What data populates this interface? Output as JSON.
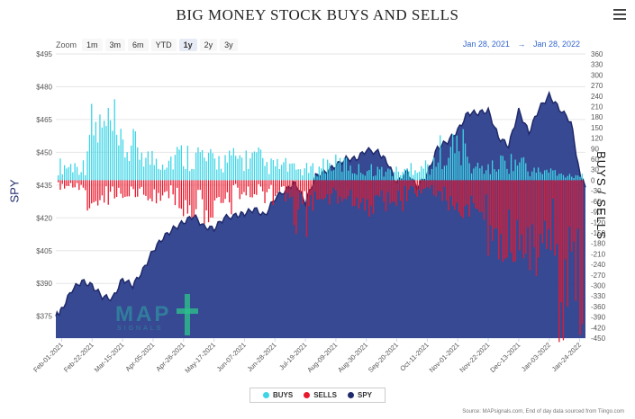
{
  "header": {
    "title": "BIG MONEY STOCK BUYS AND SELLS"
  },
  "toolbar": {
    "zoom_label": "Zoom",
    "zoom_options": [
      "1m",
      "3m",
      "6m",
      "YTD",
      "1y",
      "2y",
      "3y"
    ],
    "zoom_active": "1y",
    "range_from": "Jan 28, 2021",
    "range_arrow": "→",
    "range_to": "Jan 28, 2022"
  },
  "watermark": {
    "text": "MAP",
    "sub": "SIGNALS"
  },
  "source": "Source: MAPsignals.com, End of day data sourced from Tiingo.com",
  "colors": {
    "buys": "#3dd5e6",
    "sells": "#e8182c",
    "spy": "#1f2a6b",
    "spy_fill": "#27398a"
  },
  "chart_data": {
    "type": "bar",
    "title": "BIG MONEY STOCK BUYS AND SELLS",
    "ylabel_left": "SPY",
    "ylabel_right": "BUYS / SELLS",
    "ylim_left": [
      365,
      495
    ],
    "ylim_right": [
      -450,
      360
    ],
    "yticks_left": [
      375,
      390,
      405,
      420,
      435,
      450,
      465,
      480,
      495
    ],
    "yticks_right": [
      -450,
      -420,
      -390,
      -360,
      -330,
      -300,
      -270,
      -240,
      -210,
      -180,
      -150,
      -120,
      -90,
      -60,
      -30,
      0,
      30,
      60,
      90,
      120,
      150,
      180,
      210,
      240,
      270,
      300,
      330,
      360
    ],
    "x_ticks": [
      "Feb-01-2021",
      "Feb-22-2021",
      "Mar-15-2021",
      "Apr-05-2021",
      "Apr-26-2021",
      "May-17-2021",
      "Jun-07-2021",
      "Jun-28-2021",
      "Jul-19-2021",
      "Aug-09-2021",
      "Aug-30-2021",
      "Sep-20-2021",
      "Oct-11-2021",
      "Nov-01-2021",
      "Nov-22-2021",
      "Dec-13-2021",
      "Jan-03-2022",
      "Jan-24-2022"
    ],
    "legend": [
      "BUYS",
      "SELLS",
      "SPY"
    ],
    "legend_position": "bottom",
    "spy_series": [
      [
        "Jan-28-2021",
        375
      ],
      [
        "Feb-01-2021",
        378
      ],
      [
        "Feb-08-2021",
        387
      ],
      [
        "Feb-15-2021",
        391
      ],
      [
        "Feb-22-2021",
        389
      ],
      [
        "Mar-01-2021",
        384
      ],
      [
        "Mar-08-2021",
        383
      ],
      [
        "Mar-15-2021",
        392
      ],
      [
        "Mar-22-2021",
        389
      ],
      [
        "Mar-29-2021",
        396
      ],
      [
        "Apr-05-2021",
        405
      ],
      [
        "Apr-12-2021",
        411
      ],
      [
        "Apr-19-2021",
        415
      ],
      [
        "Apr-26-2021",
        418
      ],
      [
        "May-03-2021",
        421
      ],
      [
        "May-10-2021",
        416
      ],
      [
        "May-17-2021",
        415
      ],
      [
        "May-24-2021",
        420
      ],
      [
        "Jun-01-2021",
        421
      ],
      [
        "Jun-07-2021",
        422
      ],
      [
        "Jun-14-2021",
        424
      ],
      [
        "Jun-21-2021",
        421
      ],
      [
        "Jun-28-2021",
        429
      ],
      [
        "Jul-06-2021",
        433
      ],
      [
        "Jul-12-2021",
        436
      ],
      [
        "Jul-19-2021",
        427
      ],
      [
        "Jul-26-2021",
        439
      ],
      [
        "Aug-02-2021",
        441
      ],
      [
        "Aug-09-2021",
        444
      ],
      [
        "Aug-16-2021",
        447
      ],
      [
        "Aug-23-2021",
        447
      ],
      [
        "Aug-30-2021",
        451
      ],
      [
        "Sep-07-2021",
        450
      ],
      [
        "Sep-13-2021",
        446
      ],
      [
        "Sep-20-2021",
        436
      ],
      [
        "Sep-27-2021",
        441
      ],
      [
        "Oct-04-2021",
        434
      ],
      [
        "Oct-11-2021",
        440
      ],
      [
        "Oct-18-2021",
        452
      ],
      [
        "Oct-25-2021",
        455
      ],
      [
        "Nov-01-2021",
        460
      ],
      [
        "Nov-08-2021",
        468
      ],
      [
        "Nov-15-2021",
        468
      ],
      [
        "Nov-22-2021",
        469
      ],
      [
        "Nov-29-2021",
        457
      ],
      [
        "Dec-06-2021",
        453
      ],
      [
        "Dec-13-2021",
        469
      ],
      [
        "Dec-20-2021",
        459
      ],
      [
        "Dec-27-2021",
        470
      ],
      [
        "Jan-03-2022",
        476
      ],
      [
        "Jan-10-2022",
        470
      ],
      [
        "Jan-18-2022",
        464
      ],
      [
        "Jan-24-2022",
        440
      ],
      [
        "Jan-28-2022",
        434
      ]
    ],
    "buys_sells_weekly_avg": [
      [
        "Feb-01-2021",
        40,
        -20
      ],
      [
        "Feb-22-2021",
        140,
        -50
      ],
      [
        "Mar-15-2021",
        90,
        -30
      ],
      [
        "Apr-05-2021",
        60,
        -40
      ],
      [
        "Apr-26-2021",
        70,
        -60
      ],
      [
        "May-17-2021",
        55,
        -70
      ],
      [
        "Jun-07-2021",
        60,
        -30
      ],
      [
        "Jun-28-2021",
        40,
        -40
      ],
      [
        "Jul-19-2021",
        30,
        -90
      ],
      [
        "Aug-09-2021",
        45,
        -40
      ],
      [
        "Aug-30-2021",
        30,
        -60
      ],
      [
        "Sep-20-2021",
        25,
        -50
      ],
      [
        "Oct-11-2021",
        40,
        -30
      ],
      [
        "Nov-01-2021",
        90,
        -60
      ],
      [
        "Nov-22-2021",
        35,
        -120
      ],
      [
        "Dec-13-2021",
        50,
        -130
      ],
      [
        "Jan-03-2022",
        25,
        -160
      ],
      [
        "Jan-24-2022",
        15,
        -260
      ]
    ]
  }
}
